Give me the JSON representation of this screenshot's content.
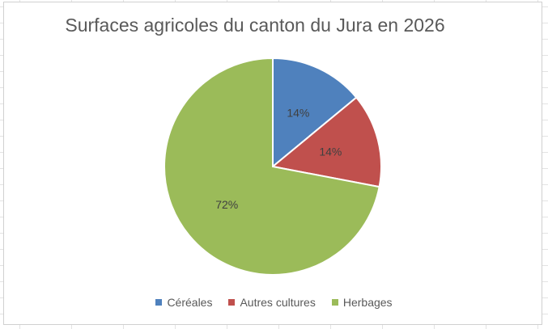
{
  "chart_data": {
    "type": "pie",
    "title": "Surfaces agricoles du canton du Jura en 2026",
    "categories": [
      "Céréales",
      "Autres cultures",
      "Herbages"
    ],
    "values": [
      14,
      14,
      72
    ],
    "data_labels": [
      "14%",
      "14%",
      "72%"
    ],
    "colors": [
      "#4f81bd",
      "#c0504d",
      "#9bbb59"
    ],
    "legend_position": "bottom"
  }
}
